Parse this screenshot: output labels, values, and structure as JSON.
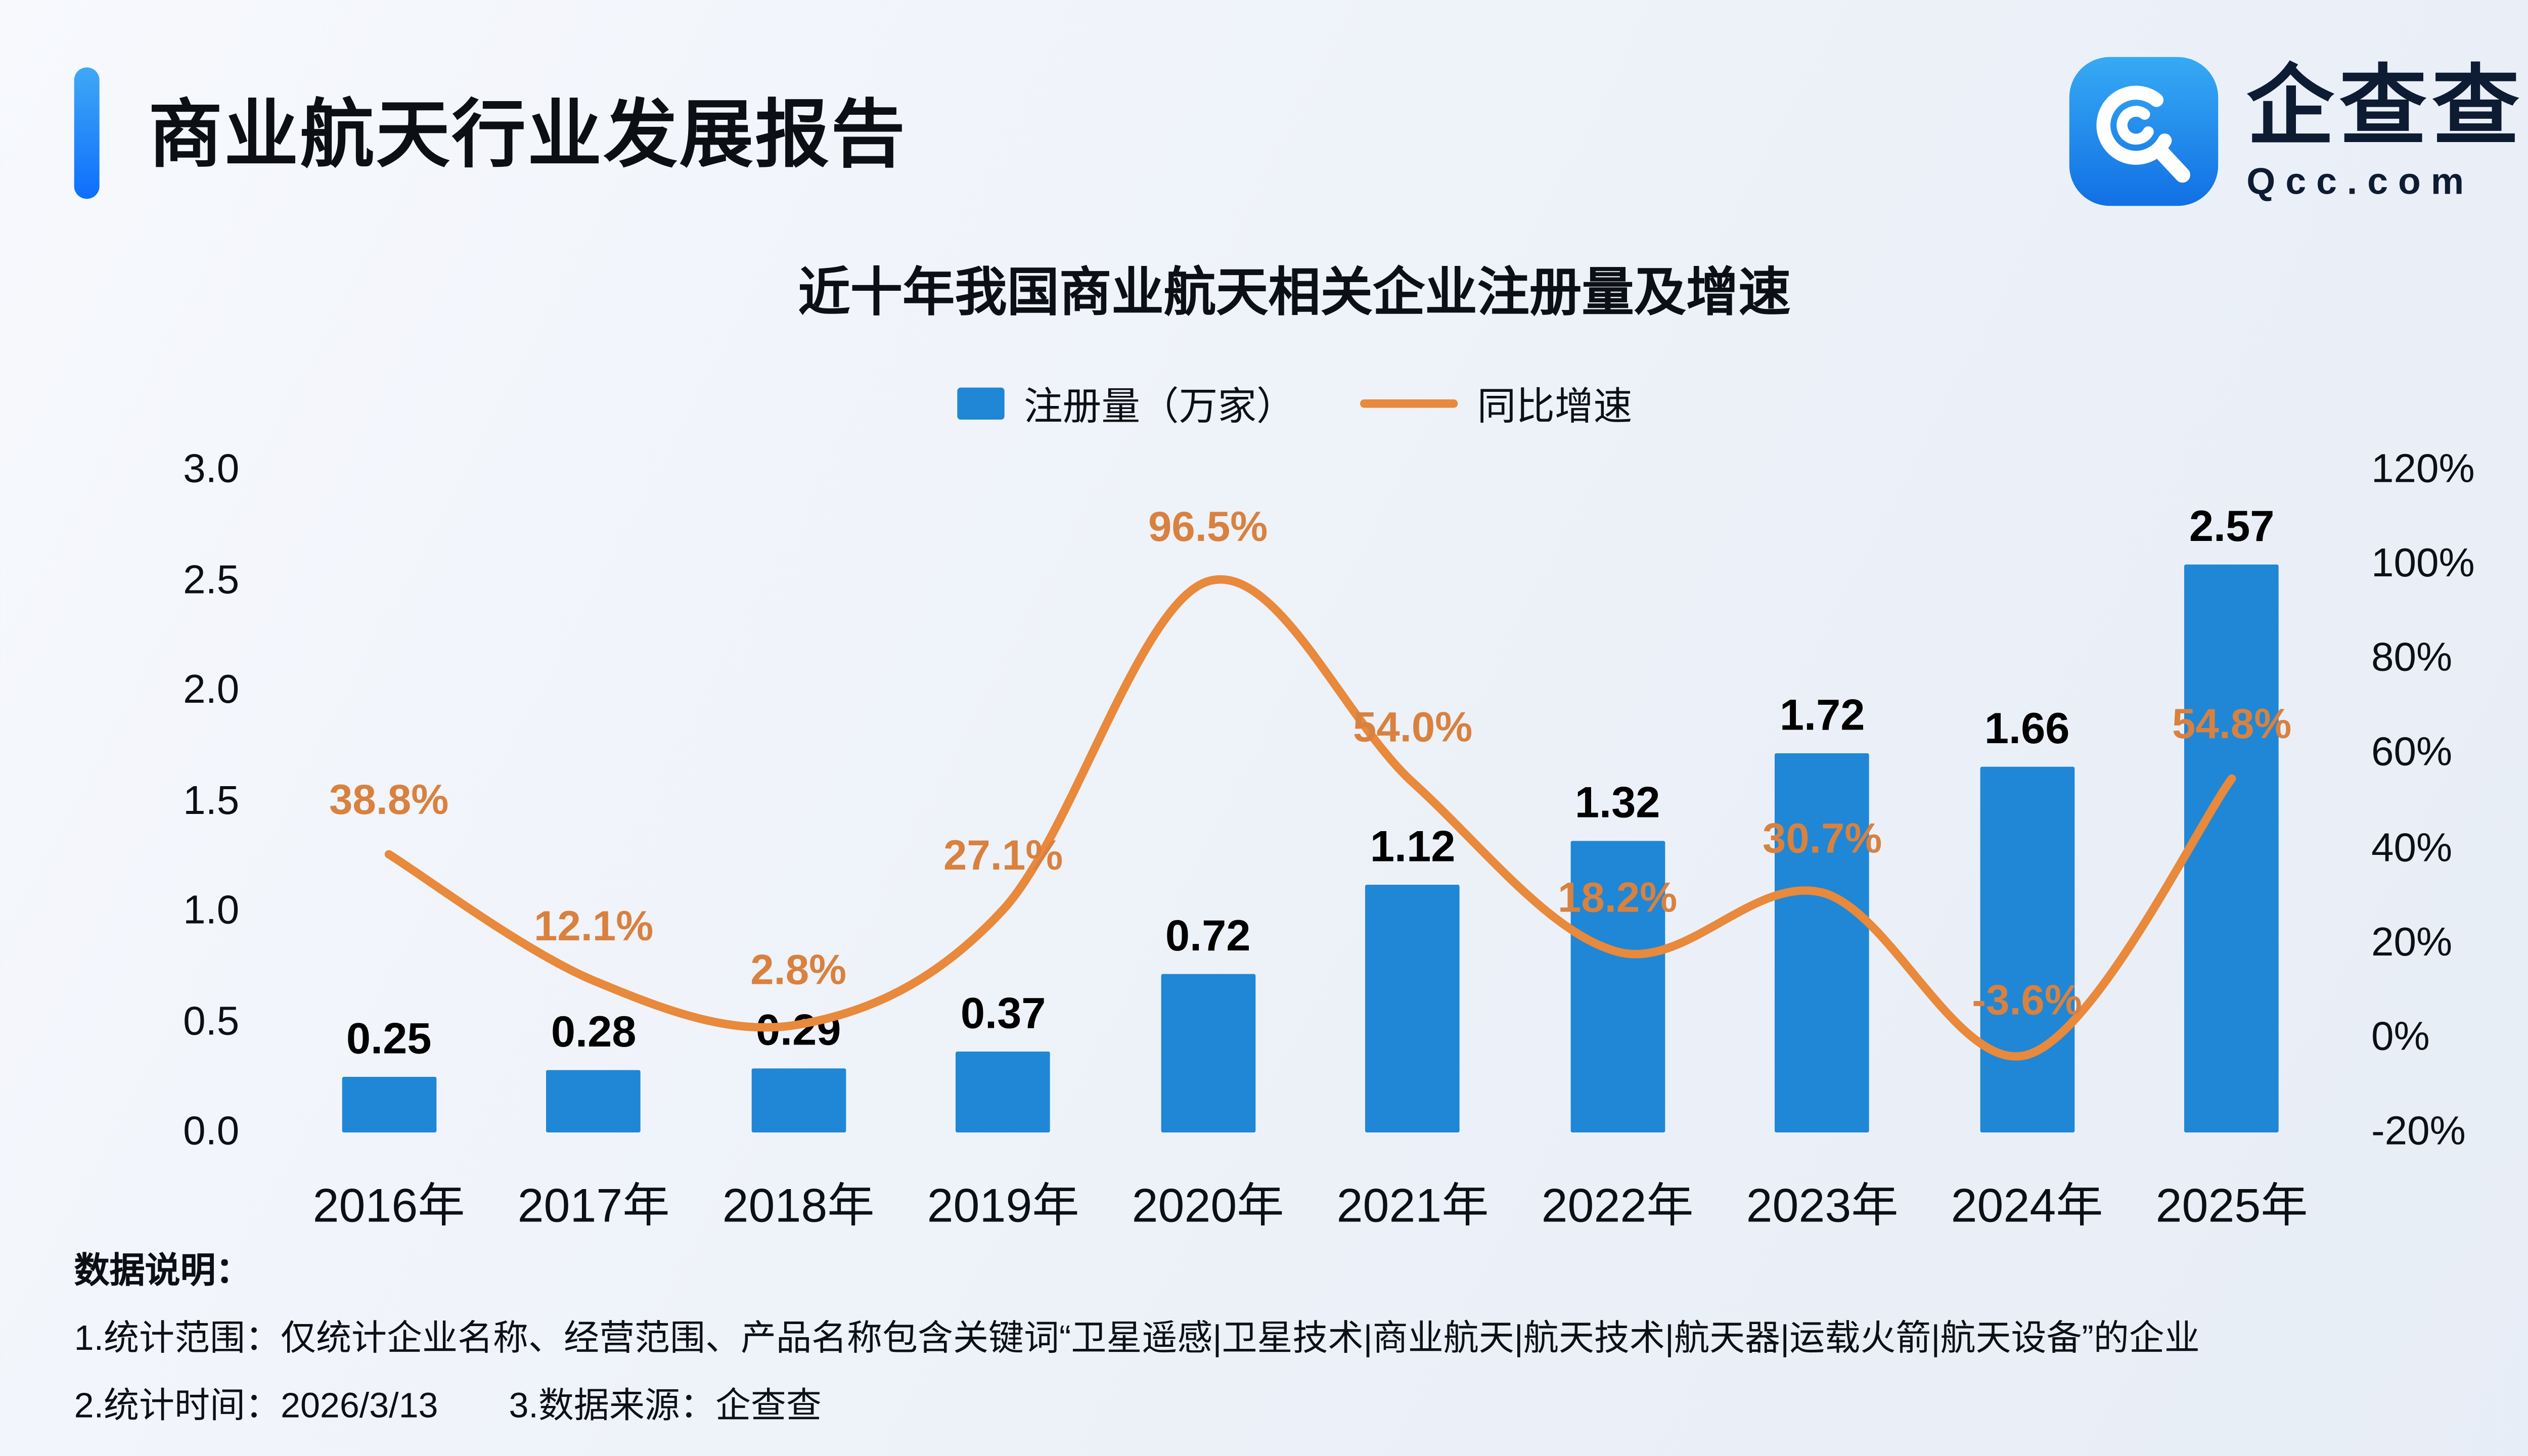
{
  "header": {
    "title": "商业航天行业发展报告",
    "logo": {
      "name": "企查查",
      "domain": "Qcc.com"
    }
  },
  "chart_data": {
    "type": "combo",
    "title": "近十年我国商业航天相关企业注册量及增速",
    "categories": [
      "2016年",
      "2017年",
      "2018年",
      "2019年",
      "2020年",
      "2021年",
      "2022年",
      "2023年",
      "2024年",
      "2025年"
    ],
    "series": [
      {
        "name": "注册量（万家）",
        "type": "bar",
        "axis": "left",
        "color": "#1F87D5",
        "values": [
          0.25,
          0.28,
          0.29,
          0.37,
          0.72,
          1.12,
          1.32,
          1.72,
          1.66,
          2.57
        ],
        "labels": [
          "0.25",
          "0.28",
          "0.29",
          "0.37",
          "0.72",
          "1.12",
          "1.32",
          "1.72",
          "1.66",
          "2.57"
        ]
      },
      {
        "name": "同比增速",
        "type": "line",
        "axis": "right",
        "color": "#E8893B",
        "values": [
          38.8,
          12.1,
          2.8,
          27.1,
          96.5,
          54.0,
          18.2,
          30.7,
          -3.6,
          54.8
        ],
        "labels": [
          "38.8%",
          "12.1%",
          "2.8%",
          "27.1%",
          "96.5%",
          "54.0%",
          "18.2%",
          "30.7%",
          "-3.6%",
          "54.8%"
        ]
      }
    ],
    "left_axis": {
      "min": 0,
      "max": 3.0,
      "ticks": [
        "3.0",
        "2.5",
        "2.0",
        "1.5",
        "1.0",
        "0.5",
        "0.0"
      ]
    },
    "right_axis": {
      "min": -20,
      "max": 120,
      "ticks": [
        "120%",
        "100%",
        "80%",
        "60%",
        "40%",
        "20%",
        "0%",
        "-20%"
      ]
    },
    "legend_position": "top",
    "grid": false,
    "label_color": "#D9813F"
  },
  "footer": {
    "heading": "数据说明：",
    "notes": [
      "1.统计范围：仅统计企业名称、经营范围、产品名称包含关键词“卫星遥感|卫星技术|商业航天|航天技术|航天器|运载火箭|航天设备”的企业",
      "2.统计时间：2026/3/13　　3.数据来源：企查查"
    ]
  },
  "colors": {
    "accent": "#1B7BEA",
    "bar": "#1F87D5",
    "line": "#E8893B",
    "background": "#EEF2F8"
  }
}
